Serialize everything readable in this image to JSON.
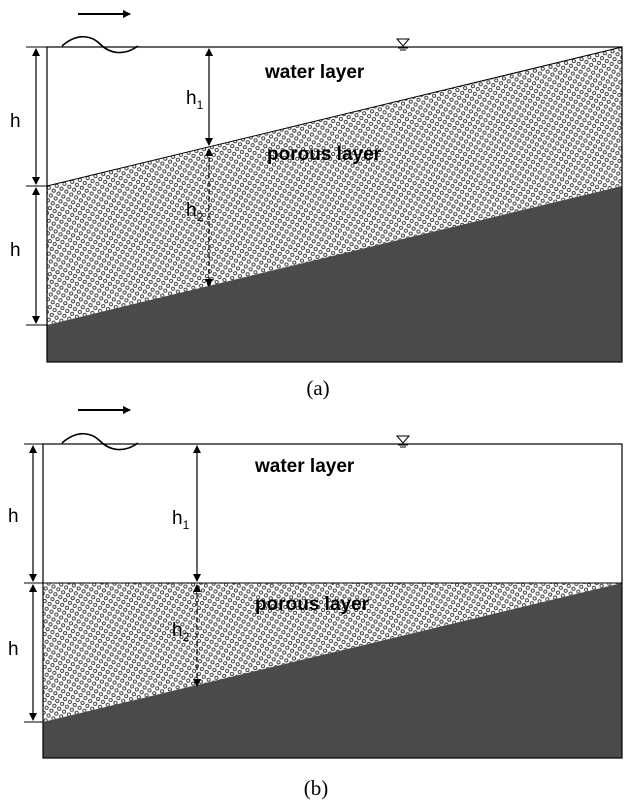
{
  "panels": [
    {
      "water_label": "water layer",
      "porous_label": "porous layer",
      "h_upper": "h",
      "h_lower": "h",
      "h1_main": "h",
      "h1_sub": "1",
      "h2_main": "h",
      "h2_sub": "2",
      "caption": "(a)"
    },
    {
      "water_label": "water layer",
      "porous_label": "porous layer",
      "h_upper": "h",
      "h_lower": "h",
      "h1_main": "h",
      "h1_sub": "1",
      "h2_main": "h",
      "h2_sub": "2",
      "caption": "(b)"
    }
  ],
  "colors": {
    "bed": "#4a4a4a",
    "water": "#ffffff",
    "line": "#000000",
    "pore": "#333333"
  }
}
